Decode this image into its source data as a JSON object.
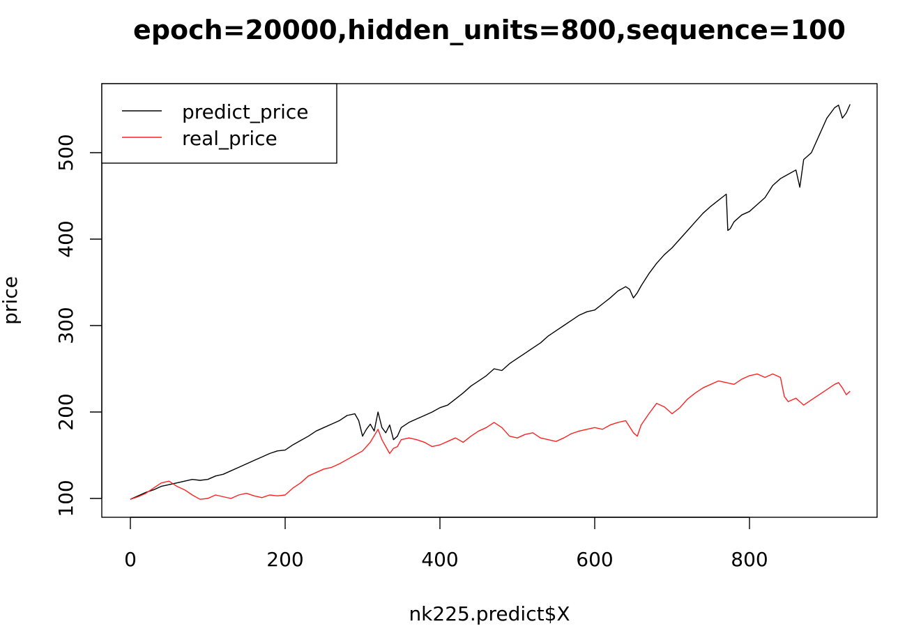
{
  "chart_data": {
    "type": "line",
    "title": "epoch=20000,hidden_units=800,sequence=100",
    "xlabel": "nk225.predict$X",
    "ylabel": "price",
    "xlim": [
      0,
      930
    ],
    "ylim": [
      100,
      560
    ],
    "x_ticks": [
      0,
      200,
      400,
      600,
      800
    ],
    "y_ticks": [
      100,
      200,
      300,
      400,
      500
    ],
    "x_tick_labels": [
      "0",
      "200",
      "400",
      "600",
      "800"
    ],
    "y_tick_labels": [
      "100",
      "200",
      "300",
      "400",
      "500"
    ],
    "grid": false,
    "legend_position": "top-left",
    "series": [
      {
        "name": "predict_price",
        "color": "#000000",
        "x": [
          0,
          10,
          20,
          30,
          40,
          50,
          60,
          70,
          80,
          90,
          100,
          110,
          120,
          130,
          140,
          150,
          160,
          170,
          180,
          190,
          200,
          210,
          220,
          230,
          240,
          250,
          260,
          270,
          280,
          290,
          295,
          300,
          305,
          310,
          315,
          320,
          325,
          330,
          335,
          340,
          345,
          350,
          360,
          370,
          380,
          390,
          400,
          410,
          420,
          430,
          440,
          450,
          460,
          470,
          480,
          490,
          500,
          510,
          520,
          530,
          540,
          550,
          560,
          570,
          580,
          590,
          600,
          610,
          620,
          630,
          640,
          645,
          650,
          655,
          660,
          670,
          680,
          690,
          700,
          710,
          720,
          730,
          740,
          750,
          760,
          770,
          772,
          775,
          780,
          790,
          800,
          810,
          820,
          830,
          840,
          850,
          860,
          865,
          870,
          880,
          890,
          900,
          910,
          915,
          920,
          925,
          930
        ],
        "y": [
          99,
          103,
          107,
          110,
          114,
          116,
          118,
          120,
          122,
          121,
          122,
          126,
          128,
          132,
          136,
          140,
          144,
          148,
          152,
          155,
          156,
          162,
          167,
          172,
          178,
          182,
          186,
          190,
          196,
          198,
          190,
          172,
          180,
          186,
          178,
          200,
          182,
          176,
          185,
          168,
          172,
          182,
          188,
          192,
          196,
          200,
          205,
          208,
          215,
          222,
          230,
          236,
          242,
          250,
          248,
          256,
          262,
          268,
          274,
          280,
          288,
          294,
          300,
          306,
          312,
          316,
          318,
          325,
          332,
          340,
          345,
          342,
          332,
          338,
          346,
          360,
          372,
          382,
          390,
          400,
          410,
          420,
          430,
          438,
          445,
          452,
          410,
          412,
          420,
          428,
          432,
          440,
          448,
          462,
          470,
          475,
          480,
          460,
          492,
          500,
          520,
          540,
          552,
          555,
          540,
          546,
          556
        ]
      },
      {
        "name": "real_price",
        "color": "#ff2020",
        "x": [
          0,
          10,
          20,
          30,
          40,
          50,
          60,
          70,
          80,
          90,
          100,
          110,
          120,
          130,
          140,
          150,
          160,
          170,
          180,
          190,
          200,
          210,
          220,
          230,
          240,
          250,
          260,
          270,
          280,
          290,
          300,
          310,
          320,
          325,
          330,
          335,
          340,
          345,
          350,
          360,
          370,
          380,
          390,
          400,
          410,
          420,
          430,
          440,
          450,
          460,
          470,
          480,
          490,
          500,
          510,
          520,
          530,
          540,
          550,
          560,
          570,
          580,
          590,
          600,
          610,
          620,
          630,
          640,
          650,
          655,
          660,
          670,
          680,
          690,
          700,
          710,
          720,
          730,
          740,
          750,
          760,
          770,
          780,
          790,
          800,
          810,
          820,
          830,
          840,
          845,
          850,
          860,
          870,
          880,
          890,
          900,
          910,
          915,
          920,
          925,
          930
        ],
        "y": [
          99,
          102,
          106,
          112,
          118,
          120,
          114,
          110,
          104,
          99,
          100,
          104,
          102,
          100,
          104,
          106,
          103,
          101,
          104,
          103,
          104,
          112,
          118,
          126,
          130,
          134,
          136,
          140,
          145,
          150,
          155,
          165,
          180,
          168,
          160,
          152,
          158,
          160,
          168,
          170,
          168,
          165,
          160,
          162,
          166,
          170,
          165,
          172,
          178,
          182,
          188,
          182,
          172,
          170,
          174,
          176,
          170,
          168,
          166,
          170,
          175,
          178,
          180,
          182,
          180,
          185,
          188,
          190,
          176,
          172,
          185,
          198,
          210,
          206,
          198,
          205,
          215,
          222,
          228,
          232,
          236,
          234,
          232,
          238,
          242,
          244,
          240,
          244,
          240,
          218,
          212,
          216,
          208,
          214,
          220,
          226,
          232,
          234,
          228,
          220,
          224
        ]
      }
    ]
  }
}
